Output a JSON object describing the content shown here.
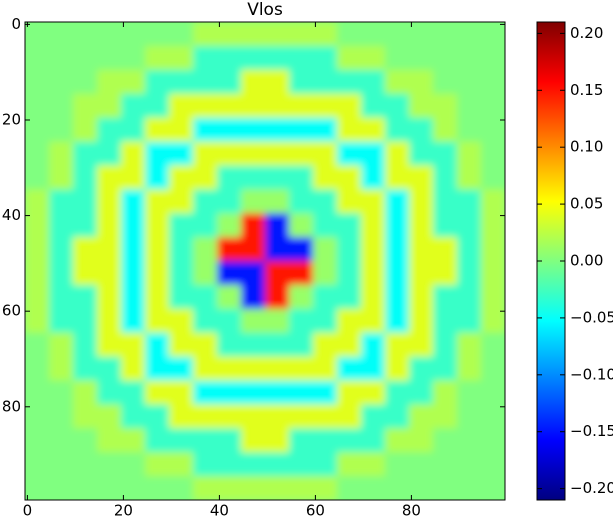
{
  "chart_data": {
    "type": "heatmap",
    "title": "Vlos",
    "colormap": "jet",
    "xlim": [
      -0.5,
      99.5
    ],
    "ylim": [
      99.5,
      -0.5
    ],
    "xticks": [
      0,
      20,
      40,
      60,
      80
    ],
    "yticks": [
      0,
      20,
      40,
      60,
      80
    ],
    "clim": [
      -0.21,
      0.21
    ],
    "cticks": [
      {
        "value": -0.2,
        "label": "−0.20"
      },
      {
        "value": -0.15,
        "label": "−0.15"
      },
      {
        "value": -0.1,
        "label": "−0.10"
      },
      {
        "value": -0.05,
        "label": "−0.05"
      },
      {
        "value": 0,
        "label": "0.00"
      },
      {
        "value": 0.05,
        "label": "0.05"
      },
      {
        "value": 0.1,
        "label": "0.10"
      },
      {
        "value": 0.15,
        "label": "0.15"
      },
      {
        "value": 0.2,
        "label": "0.20"
      }
    ],
    "z": [
      [
        0,
        0,
        0,
        0,
        0,
        0,
        0,
        0.02,
        0.02,
        0.02,
        0.02,
        0.02,
        0.02,
        0,
        0,
        0,
        0,
        0,
        0,
        0
      ],
      [
        0,
        0,
        0,
        0,
        0,
        0.02,
        0.02,
        -0.03,
        -0.03,
        -0.03,
        -0.03,
        -0.03,
        -0.03,
        0.02,
        0.02,
        0,
        0,
        0,
        0,
        0
      ],
      [
        0,
        0,
        0,
        0.02,
        0.02,
        -0.03,
        -0.03,
        -0.03,
        -0.03,
        0.04,
        0.04,
        -0.03,
        -0.03,
        -0.03,
        -0.03,
        0.02,
        0.02,
        0,
        0,
        0
      ],
      [
        0,
        0,
        0.02,
        0.02,
        -0.03,
        -0.03,
        0.04,
        0.04,
        0.04,
        0.04,
        0.04,
        0.04,
        0.04,
        0.04,
        -0.03,
        -0.03,
        0.02,
        0.02,
        0,
        0
      ],
      [
        0,
        0,
        0.02,
        -0.03,
        -0.03,
        0.04,
        0.04,
        -0.05,
        -0.05,
        -0.05,
        -0.05,
        -0.05,
        -0.05,
        0.04,
        0.04,
        -0.03,
        -0.03,
        0.02,
        0,
        0
      ],
      [
        0,
        0.02,
        -0.03,
        -0.03,
        0.04,
        -0.05,
        -0.05,
        0.04,
        0.04,
        0.04,
        0.04,
        0.04,
        0.04,
        -0.05,
        -0.05,
        0.04,
        -0.03,
        -0.03,
        0.02,
        0
      ],
      [
        0,
        0.02,
        -0.03,
        0.04,
        0.04,
        -0.05,
        0.04,
        0.04,
        -0.03,
        -0.03,
        -0.03,
        -0.03,
        0.04,
        0.04,
        -0.05,
        0.04,
        0.04,
        -0.03,
        0.02,
        0
      ],
      [
        0.02,
        -0.03,
        -0.03,
        0.04,
        -0.05,
        0.04,
        0.04,
        -0.03,
        -0.03,
        0.01,
        0.01,
        -0.03,
        -0.03,
        0.04,
        0.04,
        -0.05,
        0.04,
        -0.03,
        -0.03,
        0.02
      ],
      [
        0.02,
        -0.03,
        -0.03,
        0.04,
        -0.05,
        0.04,
        -0.03,
        -0.03,
        0.01,
        0.15,
        -0.15,
        0.01,
        -0.03,
        -0.03,
        0.04,
        -0.05,
        0.04,
        -0.03,
        -0.03,
        0.02
      ],
      [
        0.02,
        -0.03,
        0.04,
        0.04,
        -0.05,
        0.04,
        -0.03,
        0.01,
        0.15,
        0.15,
        -0.15,
        -0.15,
        0.01,
        -0.03,
        0.04,
        -0.05,
        0.04,
        0.04,
        -0.03,
        0.02
      ],
      [
        0.02,
        -0.03,
        0.04,
        0.04,
        -0.05,
        0.04,
        -0.03,
        0.01,
        -0.15,
        -0.15,
        0.15,
        0.15,
        0.01,
        -0.03,
        0.04,
        -0.05,
        0.04,
        0.04,
        -0.03,
        0.02
      ],
      [
        0.02,
        -0.03,
        -0.03,
        0.04,
        -0.05,
        0.04,
        -0.03,
        -0.03,
        0.01,
        -0.15,
        0.15,
        0.01,
        -0.03,
        -0.03,
        0.04,
        -0.05,
        0.04,
        -0.03,
        -0.03,
        0.02
      ],
      [
        0.02,
        -0.03,
        -0.03,
        0.04,
        -0.05,
        0.04,
        0.04,
        -0.03,
        -0.03,
        0.01,
        0.01,
        -0.03,
        -0.03,
        0.04,
        0.04,
        -0.05,
        0.04,
        -0.03,
        -0.03,
        0.02
      ],
      [
        0,
        0.02,
        -0.03,
        0.04,
        0.04,
        -0.05,
        0.04,
        0.04,
        -0.03,
        -0.03,
        -0.03,
        -0.03,
        0.04,
        0.04,
        -0.05,
        0.04,
        0.04,
        -0.03,
        0.02,
        0
      ],
      [
        0,
        0.02,
        -0.03,
        -0.03,
        0.04,
        -0.05,
        -0.05,
        0.04,
        0.04,
        0.04,
        0.04,
        0.04,
        0.04,
        -0.05,
        -0.05,
        0.04,
        -0.03,
        -0.03,
        0.02,
        0
      ],
      [
        0,
        0,
        0.02,
        -0.03,
        -0.03,
        0.04,
        0.04,
        -0.05,
        -0.05,
        -0.05,
        -0.05,
        -0.05,
        -0.05,
        0.04,
        0.04,
        -0.03,
        -0.03,
        0.02,
        0,
        0
      ],
      [
        0,
        0,
        0.02,
        0.02,
        -0.03,
        -0.03,
        0.04,
        0.04,
        0.04,
        0.04,
        0.04,
        0.04,
        0.04,
        0.04,
        -0.03,
        -0.03,
        0.02,
        0.02,
        0,
        0
      ],
      [
        0,
        0,
        0,
        0.02,
        0.02,
        -0.03,
        -0.03,
        -0.03,
        -0.03,
        0.04,
        0.04,
        -0.03,
        -0.03,
        -0.03,
        -0.03,
        0.02,
        0.02,
        0,
        0,
        0
      ],
      [
        0,
        0,
        0,
        0,
        0,
        0.02,
        0.02,
        -0.03,
        -0.03,
        -0.03,
        -0.03,
        -0.03,
        -0.03,
        0.02,
        0.02,
        0,
        0,
        0,
        0,
        0
      ],
      [
        0,
        0,
        0,
        0,
        0,
        0,
        0,
        0.02,
        0.02,
        0.02,
        0.02,
        0.02,
        0.02,
        0,
        0,
        0,
        0,
        0,
        0,
        0
      ]
    ]
  }
}
